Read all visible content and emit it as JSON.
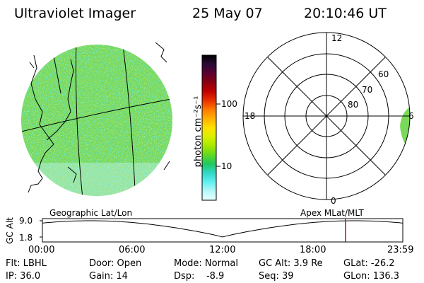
{
  "header": {
    "instrument": "Ultraviolet Imager",
    "date": "25 May 07",
    "time": "20:10:46 UT"
  },
  "colorbar": {
    "unit_label": "photon cm⁻²s⁻¹",
    "ticks": [
      "100",
      "10"
    ],
    "colors": [
      "#000000",
      "#2b0a36",
      "#5a0030",
      "#8a0010",
      "#c00000",
      "#e83000",
      "#ff7a00",
      "#ffb000",
      "#ffe000",
      "#d8f000",
      "#a8e800",
      "#60d820",
      "#20c860",
      "#30d8c8",
      "#60f0f0",
      "#b8f8f8",
      "#e8ffff"
    ]
  },
  "map_panel": {
    "label": "Geographic Lat/Lon",
    "fill_color": "#7ad85a"
  },
  "polar_panel": {
    "label": "Apex MLat/MLT",
    "hour_labels": {
      "top": "12",
      "left": "18",
      "bottom": "0",
      "right": "6"
    },
    "lat_labels": [
      "60",
      "70",
      "80"
    ]
  },
  "timeline": {
    "axis_label": "GC Alt",
    "y_ticks": [
      "9.0",
      "1.8"
    ],
    "x_ticks": [
      "00:00",
      "06:00",
      "12:00",
      "18:00",
      "23:59"
    ],
    "current_time_fraction": 0.8411,
    "marker_color": "#e00000"
  },
  "footer": {
    "flt": "Flt: LBHL",
    "ip": "IP: 36.0",
    "door": "Door: Open",
    "gain": "Gain: 14",
    "mode": "Mode: Normal",
    "dsp": "Dsp:    -8.9",
    "gc_alt": "GC Alt: 3.9 Re",
    "seq": "Seq: 39",
    "glat": "GLat: -26.2",
    "glon": "GLon: 136.3"
  }
}
